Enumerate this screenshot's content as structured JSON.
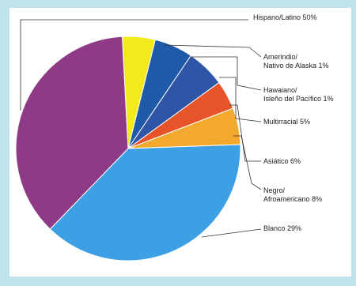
{
  "chart_data": {
    "type": "pie",
    "slices": [
      {
        "label": "Hispano/Latino 50%",
        "value": 50,
        "color": "#8e3a86"
      },
      {
        "label": "Amerindio/|Nativo de Alaska 1%",
        "value": 1,
        "color": "#f2ea1c"
      },
      {
        "label": "Hawaiano/|Isleño del Pacífico 1%",
        "value": 1,
        "color": "#1f5aa8"
      },
      {
        "label": "Multirracial 5%",
        "value": 5,
        "color": "#2f56a6"
      },
      {
        "label": "Asiático 6%",
        "value": 6,
        "color": "#e8542a"
      },
      {
        "label": "Negro/|Afroamericano 8%",
        "value": 8,
        "color": "#f2a92e"
      },
      {
        "label": "Blanco 29%",
        "value": 29,
        "color": "#3da0e4"
      }
    ]
  },
  "colors": {
    "background": "#bfe3ea",
    "panel": "#ffffff",
    "leader_line": "#333333"
  }
}
